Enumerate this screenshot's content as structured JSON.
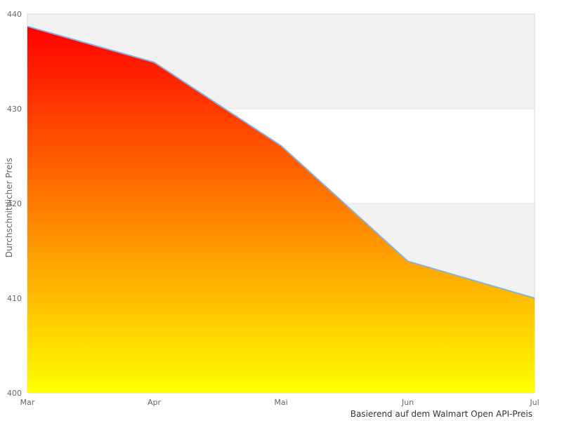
{
  "chart_data": {
    "type": "area",
    "categories": [
      "Mar",
      "Apr",
      "Mai",
      "Jun",
      "Jul"
    ],
    "values": [
      438.7,
      434.9,
      426.1,
      413.9,
      410.0
    ],
    "title": "",
    "xlabel": "",
    "ylabel": "Durchschnittlicher Preis",
    "caption": "Basierend auf dem Walmart Open API-Preis",
    "ylim": [
      400,
      440
    ],
    "yticks": [
      440,
      430,
      420,
      410,
      400
    ],
    "grid": "horizontal-with-alternating-bands",
    "legend": "none",
    "colors": {
      "gradient_top": "#ff0000",
      "gradient_bottom": "#ffff00",
      "line": "#7cb5ec",
      "alternate_band": "#f2f2f2",
      "gridline": "#e6e6e6",
      "plot_border": "#d9d9d9",
      "axis_text": "#666666",
      "caption_text": "#333333",
      "background": "#ffffff"
    }
  }
}
